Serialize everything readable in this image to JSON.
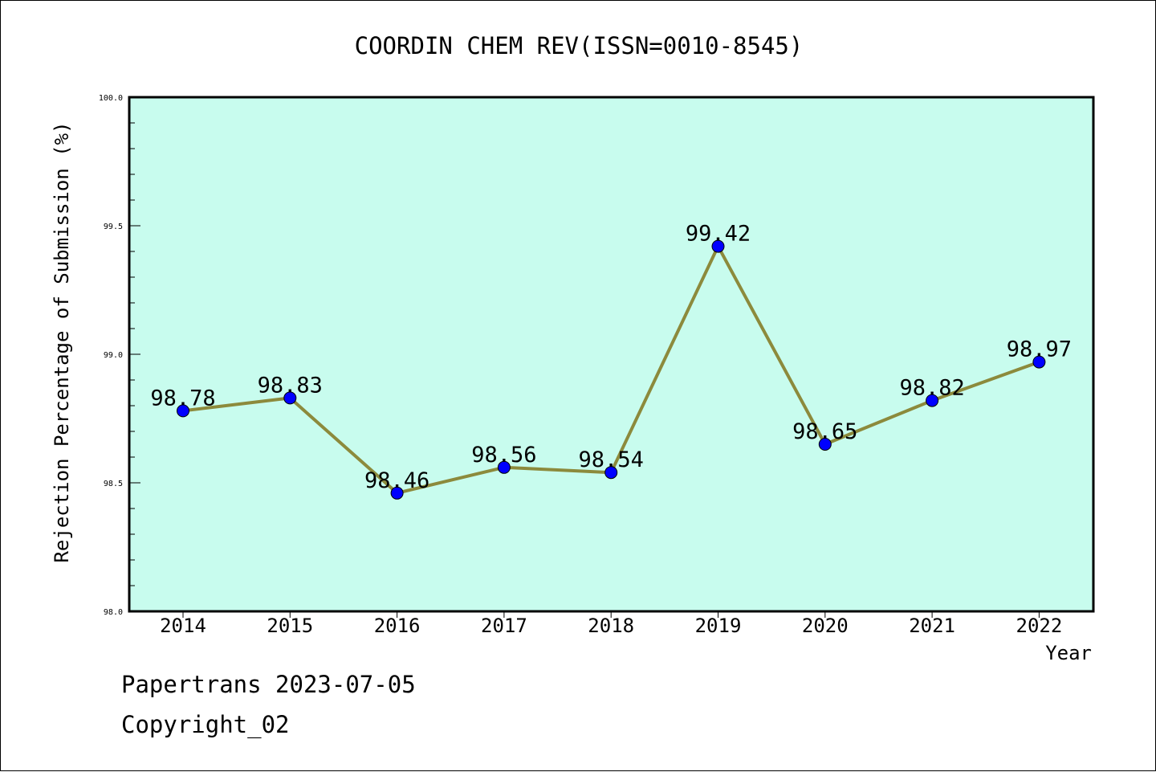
{
  "chart_data": {
    "type": "line",
    "title": "COORDIN CHEM REV(ISSN=0010-8545)",
    "xlabel": "Year",
    "ylabel": "Rejection Percentage of Submission (%)",
    "categories": [
      "2014",
      "2015",
      "2016",
      "2017",
      "2018",
      "2019",
      "2020",
      "2021",
      "2022"
    ],
    "series": [
      {
        "values": [
          98.78,
          98.83,
          98.46,
          98.56,
          98.54,
          99.42,
          98.65,
          98.82,
          98.97
        ],
        "labels": [
          "98.78",
          "98.83",
          "98.46",
          "98.56",
          "98.54",
          "99.42",
          "98.65",
          "98.82",
          "98.97"
        ]
      }
    ],
    "ylim": [
      98.0,
      100.0
    ],
    "yticks": [
      "98.0",
      "98.5",
      "99.0",
      "99.5",
      "100.0"
    ],
    "yticks_values": [
      98.0,
      98.5,
      99.0,
      99.5,
      100.0
    ],
    "grid": false,
    "colors": {
      "plot_background": "#c8fcee",
      "line": "#8c8a3c",
      "marker": "#0000ff",
      "axis": "#000000"
    }
  },
  "footer": {
    "line1": "Papertrans 2023-07-05",
    "line2": "Copyright_02"
  }
}
